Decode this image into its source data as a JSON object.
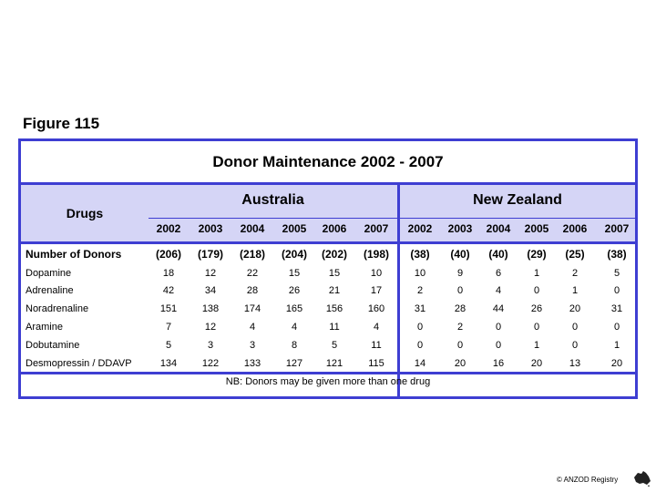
{
  "figure_label": "Figure 115",
  "table": {
    "title": "Donor Maintenance  2002 - 2007",
    "drugs_header": "Drugs",
    "regions": [
      "Australia",
      "New Zealand"
    ],
    "years": [
      "2002",
      "2003",
      "2004",
      "2005",
      "2006",
      "2007"
    ],
    "number_of_donors": {
      "label": "Number of Donors",
      "australia": [
        "(206)",
        "(179)",
        "(218)",
        "(204)",
        "(202)",
        "(198)"
      ],
      "new_zealand": [
        "(38)",
        "(40)",
        "(40)",
        "(29)",
        "(25)",
        "(38)"
      ]
    },
    "rows": [
      {
        "label": "Dopamine",
        "australia": [
          "18",
          "12",
          "22",
          "15",
          "15",
          "10"
        ],
        "new_zealand": [
          "10",
          "9",
          "6",
          "1",
          "2",
          "5"
        ]
      },
      {
        "label": "Adrenaline",
        "australia": [
          "42",
          "34",
          "28",
          "26",
          "21",
          "17"
        ],
        "new_zealand": [
          "2",
          "0",
          "4",
          "0",
          "1",
          "0"
        ]
      },
      {
        "label": "Noradrenaline",
        "australia": [
          "151",
          "138",
          "174",
          "165",
          "156",
          "160"
        ],
        "new_zealand": [
          "31",
          "28",
          "44",
          "26",
          "20",
          "31"
        ]
      },
      {
        "label": "Aramine",
        "australia": [
          "7",
          "12",
          "4",
          "4",
          "11",
          "4"
        ],
        "new_zealand": [
          "0",
          "2",
          "0",
          "0",
          "0",
          "0"
        ]
      },
      {
        "label": "Dobutamine",
        "australia": [
          "5",
          "3",
          "3",
          "8",
          "5",
          "11"
        ],
        "new_zealand": [
          "0",
          "0",
          "0",
          "1",
          "0",
          "1"
        ]
      },
      {
        "label": "Desmopressin / DDAVP",
        "australia": [
          "134",
          "122",
          "133",
          "127",
          "121",
          "115"
        ],
        "new_zealand": [
          "14",
          "20",
          "16",
          "20",
          "13",
          "20"
        ]
      }
    ],
    "footnote": "NB: Donors may be given more than one drug"
  },
  "copyright": "© ANZOD Registry",
  "colors": {
    "border": "#3e3ed2",
    "header_bg": "#d5d5f6"
  }
}
